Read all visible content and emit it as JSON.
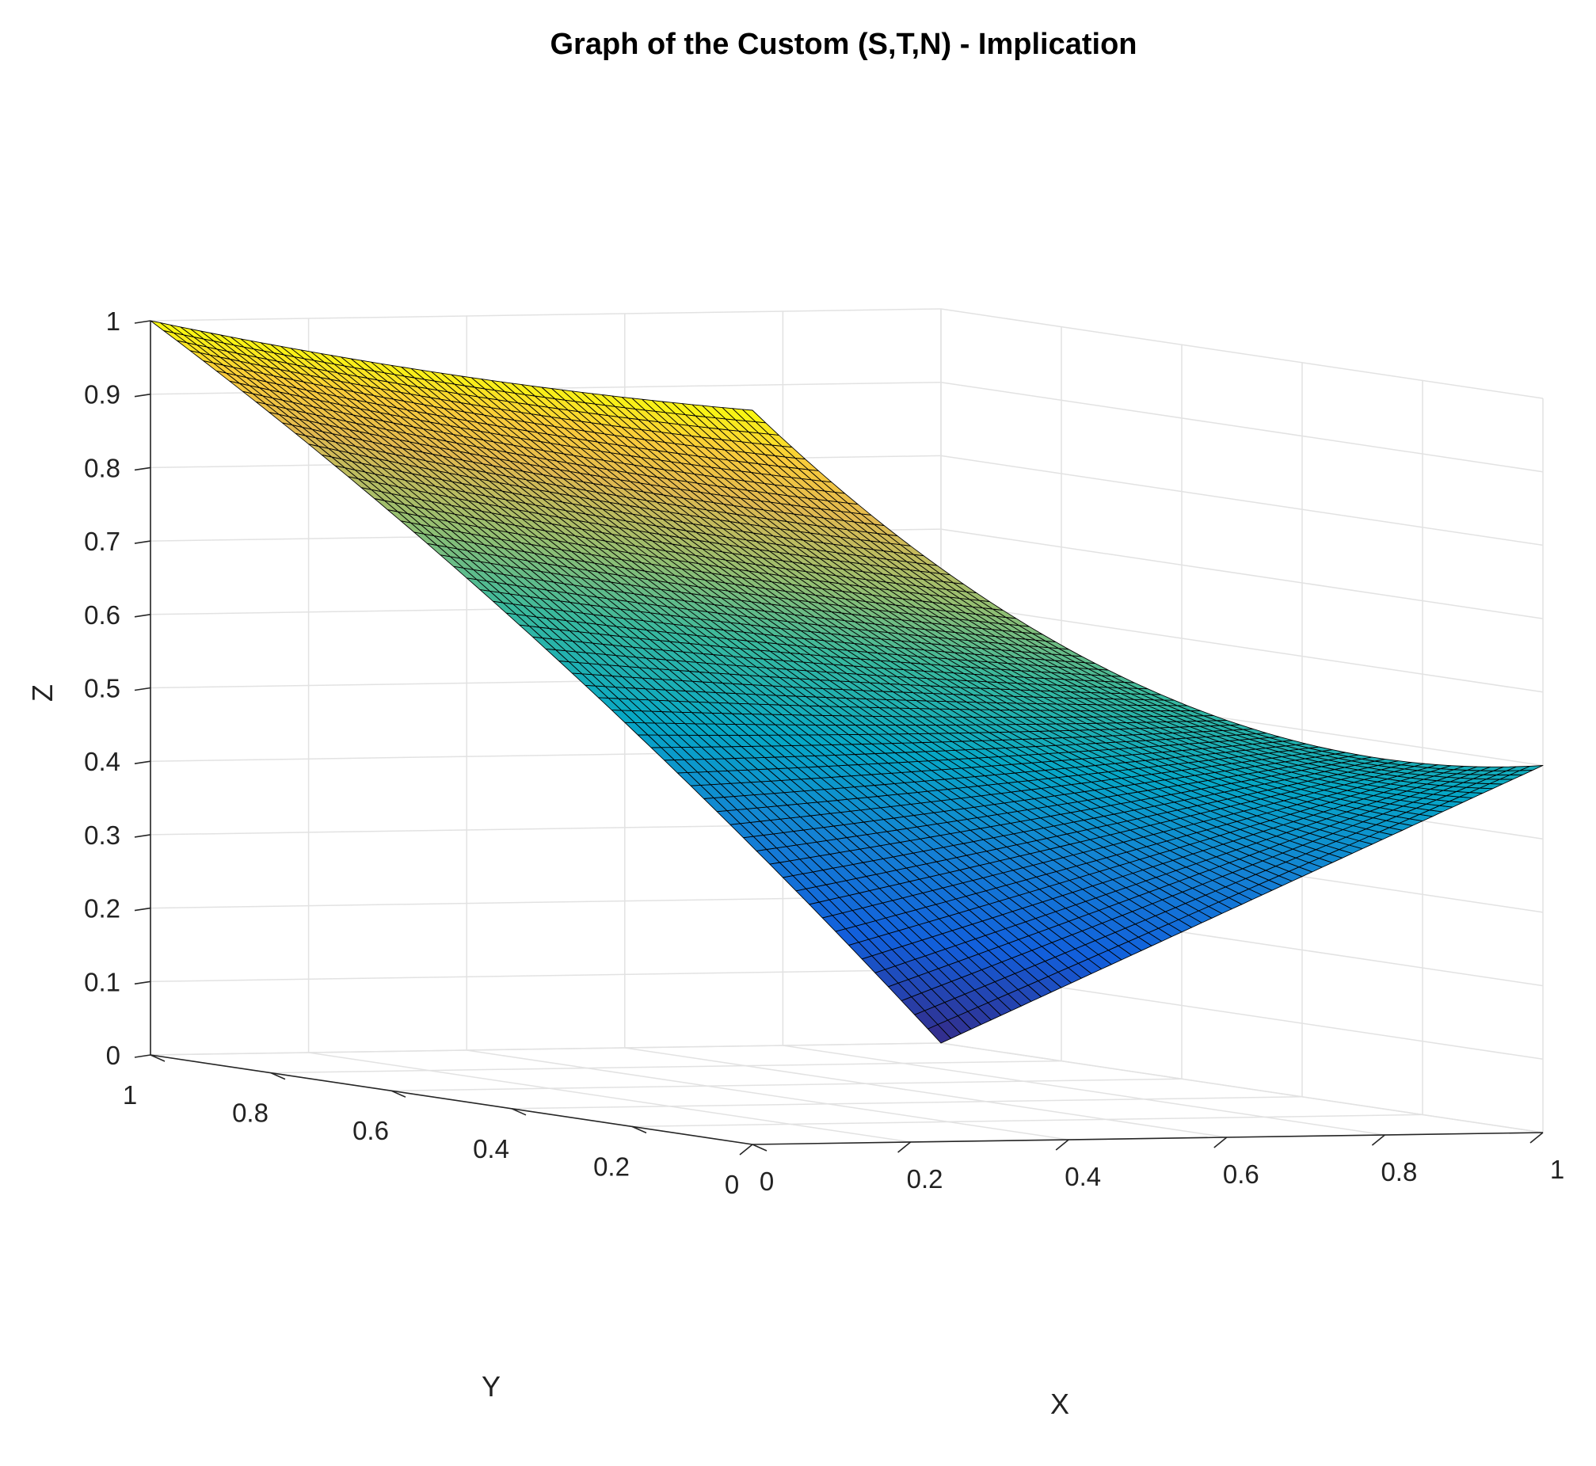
{
  "chart_data": {
    "type": "surface",
    "title": "Graph of the Custom (S,T,N) - Implication",
    "xlabel": "X",
    "ylabel": "Y",
    "zlabel": "Z",
    "xlim": [
      0,
      1
    ],
    "ylim": [
      0,
      1
    ],
    "zlim": [
      0,
      1
    ],
    "x_ticks": [
      "0",
      "0.2",
      "0.4",
      "0.6",
      "0.8",
      "1"
    ],
    "y_ticks": [
      "0",
      "0.2",
      "0.4",
      "0.6",
      "0.8",
      "1"
    ],
    "z_ticks": [
      "0",
      "0.1",
      "0.2",
      "0.3",
      "0.4",
      "0.5",
      "0.6",
      "0.7",
      "0.8",
      "0.9",
      "1"
    ],
    "grid": true,
    "colormap": "parula",
    "surface_corners": [
      {
        "x": 0,
        "y": 0,
        "z": 1
      },
      {
        "x": 0,
        "y": 1,
        "z": 1
      },
      {
        "x": 1,
        "y": 0,
        "z": 0.5
      },
      {
        "x": 1,
        "y": 1,
        "z": 0
      }
    ],
    "grid_resolution": 60
  }
}
